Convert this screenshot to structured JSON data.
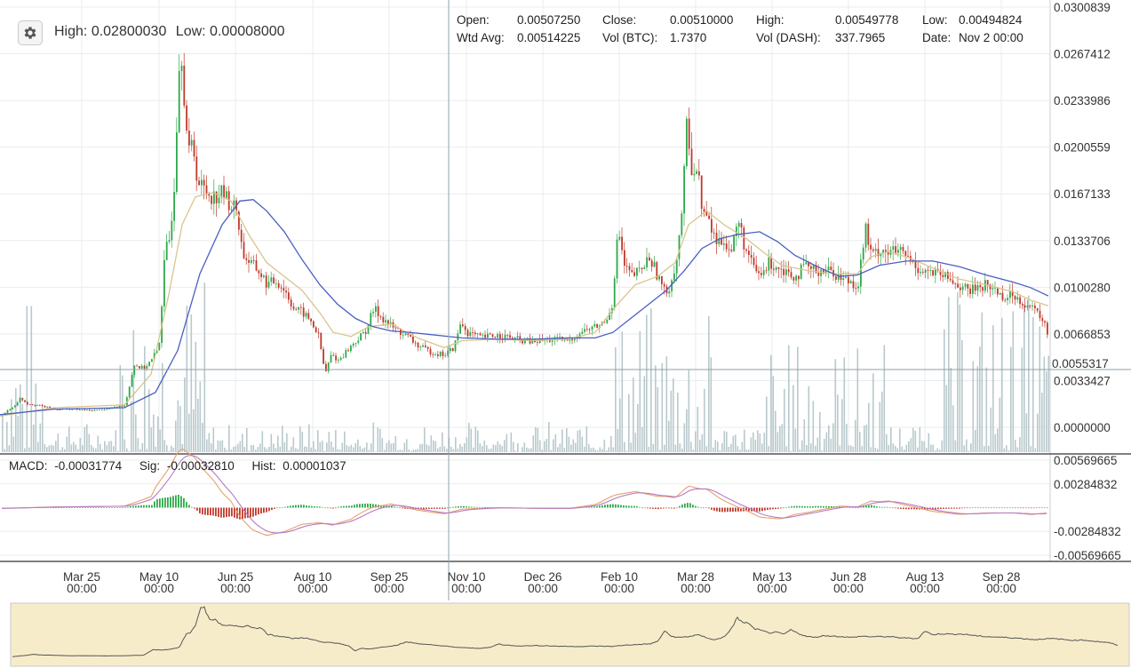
{
  "header": {
    "high_label": "High:",
    "high_value": "0.02800030",
    "low_label": "Low:",
    "low_value": "0.00008000"
  },
  "ohlc": {
    "open_label": "Open:",
    "open_value": "0.00507250",
    "close_label": "Close:",
    "close_value": "0.00510000",
    "high_label": "High:",
    "high_value": "0.00549778",
    "low_label": "Low:",
    "low_value": "0.00494824",
    "wtd_label": "Wtd Avg:",
    "wtd_value": "0.00514225",
    "volbtc_label": "Vol (BTC):",
    "volbtc_value": "1.7370",
    "voldash_label": "Vol (DASH):",
    "voldash_value": "337.7965",
    "date_label": "Date:",
    "date_value": "Nov 2 00:00"
  },
  "macd": {
    "macd_label": "MACD:",
    "macd_value": "-0.00031774",
    "sig_label": "Sig:",
    "sig_value": "-0.00032810",
    "hist_label": "Hist:",
    "hist_value": "0.00001037"
  },
  "crosshair_price": "0.0055317",
  "colors": {
    "volume": "#b9c9cc",
    "up_candle": "#2ea84a",
    "down_candle": "#c0392b",
    "ema_short": "#d9c58c",
    "ema_long": "#4a5fc1",
    "macd_line": "#e8a070",
    "signal_line": "#b57cc4",
    "navigator_bg": "#f7ecca",
    "grid": "#e8ecee"
  },
  "chart_data": {
    "type": "candlestick",
    "y_ticks": [
      "0.0300839",
      "0.0267412",
      "0.0233986",
      "0.0200559",
      "0.0167133",
      "0.0133706",
      "0.0100280",
      "0.0066853",
      "0.0033427",
      "0.0000000"
    ],
    "ylim": [
      0,
      0.0300839
    ],
    "x_ticks": [
      {
        "date": "Mar 25",
        "time": "00:00"
      },
      {
        "date": "May 10",
        "time": "00:00"
      },
      {
        "date": "Jun 25",
        "time": "00:00"
      },
      {
        "date": "Aug 10",
        "time": "00:00"
      },
      {
        "date": "Sep 25",
        "time": "00:00"
      },
      {
        "date": "Nov 10",
        "time": "00:00"
      },
      {
        "date": "Dec 26",
        "time": "00:00"
      },
      {
        "date": "Feb 10",
        "time": "00:00"
      },
      {
        "date": "Mar 28",
        "time": "00:00"
      },
      {
        "date": "May 13",
        "time": "00:00"
      },
      {
        "date": "Jun 28",
        "time": "00:00"
      },
      {
        "date": "Aug 13",
        "time": "00:00"
      },
      {
        "date": "Sep 28",
        "time": "00:00"
      }
    ],
    "price_close_points": [
      [
        0,
        0.0008
      ],
      [
        8,
        0.0012
      ],
      [
        15,
        0.0015
      ],
      [
        22,
        0.0021
      ],
      [
        30,
        0.0017
      ],
      [
        40,
        0.0016
      ],
      [
        60,
        0.0013
      ],
      [
        80,
        0.0013
      ],
      [
        100,
        0.0012
      ],
      [
        120,
        0.0013
      ],
      [
        140,
        0.0016
      ],
      [
        150,
        0.0045
      ],
      [
        160,
        0.0042
      ],
      [
        170,
        0.0048
      ],
      [
        178,
        0.0058
      ],
      [
        185,
        0.0125
      ],
      [
        190,
        0.0135
      ],
      [
        196,
        0.018
      ],
      [
        200,
        0.026
      ],
      [
        204,
        0.027
      ],
      [
        208,
        0.022
      ],
      [
        212,
        0.0195
      ],
      [
        216,
        0.0205
      ],
      [
        222,
        0.0175
      ],
      [
        230,
        0.017
      ],
      [
        240,
        0.0165
      ],
      [
        250,
        0.0168
      ],
      [
        258,
        0.016
      ],
      [
        266,
        0.0155
      ],
      [
        272,
        0.0125
      ],
      [
        280,
        0.0118
      ],
      [
        290,
        0.0112
      ],
      [
        300,
        0.0102
      ],
      [
        310,
        0.0105
      ],
      [
        320,
        0.0098
      ],
      [
        330,
        0.0085
      ],
      [
        340,
        0.0082
      ],
      [
        350,
        0.0075
      ],
      [
        358,
        0.0065
      ],
      [
        365,
        0.0038
      ],
      [
        372,
        0.0052
      ],
      [
        380,
        0.0048
      ],
      [
        390,
        0.0055
      ],
      [
        400,
        0.0062
      ],
      [
        410,
        0.0068
      ],
      [
        420,
        0.0085
      ],
      [
        430,
        0.0078
      ],
      [
        440,
        0.0072
      ],
      [
        450,
        0.0068
      ],
      [
        460,
        0.0064
      ],
      [
        470,
        0.0058
      ],
      [
        480,
        0.0055
      ],
      [
        490,
        0.0053
      ],
      [
        500,
        0.0052
      ],
      [
        510,
        0.0057
      ],
      [
        518,
        0.0075
      ],
      [
        525,
        0.0068
      ],
      [
        540,
        0.0064
      ],
      [
        560,
        0.0066
      ],
      [
        580,
        0.0063
      ],
      [
        600,
        0.0061
      ],
      [
        620,
        0.0063
      ],
      [
        640,
        0.0062
      ],
      [
        655,
        0.0069
      ],
      [
        670,
        0.0072
      ],
      [
        680,
        0.0075
      ],
      [
        688,
        0.0088
      ],
      [
        695,
        0.0142
      ],
      [
        702,
        0.0115
      ],
      [
        710,
        0.0108
      ],
      [
        720,
        0.0112
      ],
      [
        730,
        0.0122
      ],
      [
        740,
        0.0108
      ],
      [
        748,
        0.0095
      ],
      [
        755,
        0.0105
      ],
      [
        762,
        0.0125
      ],
      [
        768,
        0.0165
      ],
      [
        772,
        0.0215
      ],
      [
        778,
        0.0185
      ],
      [
        784,
        0.0185
      ],
      [
        790,
        0.0155
      ],
      [
        798,
        0.0145
      ],
      [
        806,
        0.0132
      ],
      [
        814,
        0.0135
      ],
      [
        822,
        0.0125
      ],
      [
        830,
        0.0148
      ],
      [
        838,
        0.0128
      ],
      [
        846,
        0.0115
      ],
      [
        855,
        0.0108
      ],
      [
        865,
        0.0118
      ],
      [
        875,
        0.0115
      ],
      [
        885,
        0.0112
      ],
      [
        895,
        0.0108
      ],
      [
        905,
        0.0115
      ],
      [
        915,
        0.0112
      ],
      [
        925,
        0.0113
      ],
      [
        935,
        0.0112
      ],
      [
        945,
        0.0107
      ],
      [
        955,
        0.0105
      ],
      [
        965,
        0.0102
      ],
      [
        973,
        0.0143
      ],
      [
        980,
        0.0122
      ],
      [
        990,
        0.0128
      ],
      [
        1000,
        0.0125
      ],
      [
        1010,
        0.0126
      ],
      [
        1020,
        0.0122
      ],
      [
        1030,
        0.0115
      ],
      [
        1040,
        0.0112
      ],
      [
        1050,
        0.011
      ],
      [
        1060,
        0.0108
      ],
      [
        1070,
        0.0105
      ],
      [
        1080,
        0.0101
      ],
      [
        1090,
        0.0097
      ],
      [
        1100,
        0.0101
      ],
      [
        1110,
        0.0102
      ],
      [
        1120,
        0.0098
      ],
      [
        1130,
        0.0093
      ],
      [
        1140,
        0.0095
      ],
      [
        1150,
        0.009
      ],
      [
        1160,
        0.0085
      ],
      [
        1170,
        0.008
      ],
      [
        1178,
        0.0068
      ]
    ],
    "ema_long_points": [
      [
        0,
        0.0009
      ],
      [
        60,
        0.0013
      ],
      [
        140,
        0.0014
      ],
      [
        175,
        0.0025
      ],
      [
        200,
        0.0055
      ],
      [
        225,
        0.011
      ],
      [
        250,
        0.0145
      ],
      [
        270,
        0.0162
      ],
      [
        285,
        0.0163
      ],
      [
        300,
        0.0155
      ],
      [
        320,
        0.014
      ],
      [
        340,
        0.012
      ],
      [
        360,
        0.0102
      ],
      [
        380,
        0.0088
      ],
      [
        400,
        0.0078
      ],
      [
        420,
        0.0072
      ],
      [
        440,
        0.0069
      ],
      [
        460,
        0.0068
      ],
      [
        490,
        0.0066
      ],
      [
        520,
        0.0064
      ],
      [
        560,
        0.0063
      ],
      [
        600,
        0.0063
      ],
      [
        640,
        0.0064
      ],
      [
        670,
        0.0064
      ],
      [
        690,
        0.0068
      ],
      [
        710,
        0.0078
      ],
      [
        730,
        0.0088
      ],
      [
        750,
        0.0098
      ],
      [
        770,
        0.0112
      ],
      [
        790,
        0.0128
      ],
      [
        810,
        0.0135
      ],
      [
        830,
        0.0138
      ],
      [
        855,
        0.014
      ],
      [
        875,
        0.0133
      ],
      [
        895,
        0.0123
      ],
      [
        920,
        0.0115
      ],
      [
        945,
        0.0108
      ],
      [
        965,
        0.0109
      ],
      [
        990,
        0.0116
      ],
      [
        1020,
        0.0119
      ],
      [
        1050,
        0.0119
      ],
      [
        1080,
        0.0115
      ],
      [
        1110,
        0.0109
      ],
      [
        1140,
        0.0104
      ],
      [
        1160,
        0.01
      ],
      [
        1180,
        0.0094
      ]
    ],
    "ema_short_points": [
      [
        0,
        0.0008
      ],
      [
        60,
        0.0014
      ],
      [
        140,
        0.0016
      ],
      [
        170,
        0.0038
      ],
      [
        190,
        0.0095
      ],
      [
        205,
        0.0145
      ],
      [
        220,
        0.0165
      ],
      [
        240,
        0.0168
      ],
      [
        260,
        0.0162
      ],
      [
        280,
        0.0138
      ],
      [
        300,
        0.0118
      ],
      [
        320,
        0.0108
      ],
      [
        340,
        0.0098
      ],
      [
        360,
        0.0082
      ],
      [
        375,
        0.0068
      ],
      [
        395,
        0.0065
      ],
      [
        415,
        0.0072
      ],
      [
        440,
        0.0074
      ],
      [
        470,
        0.0064
      ],
      [
        500,
        0.0057
      ],
      [
        520,
        0.0062
      ],
      [
        560,
        0.0063
      ],
      [
        600,
        0.0062
      ],
      [
        640,
        0.0063
      ],
      [
        670,
        0.0068
      ],
      [
        695,
        0.0088
      ],
      [
        715,
        0.0102
      ],
      [
        740,
        0.0108
      ],
      [
        760,
        0.0118
      ],
      [
        775,
        0.0145
      ],
      [
        795,
        0.0155
      ],
      [
        815,
        0.0145
      ],
      [
        840,
        0.0135
      ],
      [
        860,
        0.0125
      ],
      [
        880,
        0.0116
      ],
      [
        910,
        0.0112
      ],
      [
        940,
        0.011
      ],
      [
        965,
        0.011
      ],
      [
        980,
        0.0122
      ],
      [
        1000,
        0.0126
      ],
      [
        1025,
        0.0121
      ],
      [
        1050,
        0.0114
      ],
      [
        1080,
        0.0106
      ],
      [
        1110,
        0.0102
      ],
      [
        1140,
        0.0097
      ],
      [
        1160,
        0.0091
      ],
      [
        1180,
        0.0087
      ]
    ],
    "macd_y_ticks": [
      "0.00569665",
      "0.00284832",
      "-0.00284832",
      "-0.00569665"
    ],
    "macd_ylim": [
      -0.00569665,
      0.00569665
    ]
  }
}
